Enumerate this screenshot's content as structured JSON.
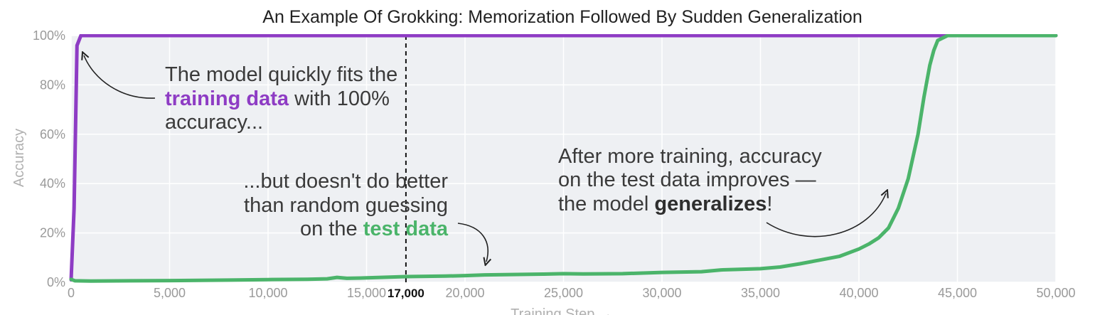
{
  "chart_data": {
    "type": "line",
    "title": "An Example Of Grokking: Memorization Followed By Sudden Generalization",
    "xlabel": "Training Step →",
    "ylabel": "Accuracy",
    "xlim": [
      0,
      50000
    ],
    "ylim": [
      0,
      100
    ],
    "x_ticks": [
      0,
      5000,
      10000,
      15000,
      20000,
      25000,
      30000,
      35000,
      40000,
      45000,
      50000
    ],
    "x_tick_labels": [
      "0",
      "5,000",
      "10,000",
      "15,000",
      "20,000",
      "25,000",
      "30,000",
      "35,000",
      "40,000",
      "45,000",
      "50,000"
    ],
    "y_ticks": [
      0,
      20,
      40,
      60,
      80,
      100
    ],
    "y_tick_labels": [
      "0%",
      "20%",
      "40%",
      "60%",
      "80%",
      "100%"
    ],
    "grid": true,
    "colors": {
      "train": "#8e3cc4",
      "test": "#4bb46a",
      "background": "#eef0f3",
      "grid": "#ffffff"
    },
    "series": [
      {
        "key": "train",
        "color": "#8e3cc4",
        "points": [
          [
            0,
            1
          ],
          [
            150,
            30
          ],
          [
            300,
            96
          ],
          [
            500,
            100
          ],
          [
            50000,
            100
          ]
        ]
      },
      {
        "key": "test",
        "color": "#4bb46a",
        "points": [
          [
            0,
            1.2
          ],
          [
            200,
            0.6
          ],
          [
            1000,
            0.5
          ],
          [
            3000,
            0.6
          ],
          [
            5000,
            0.7
          ],
          [
            8000,
            0.9
          ],
          [
            10000,
            1.1
          ],
          [
            12000,
            1.2
          ],
          [
            13000,
            1.4
          ],
          [
            13500,
            2.0
          ],
          [
            14000,
            1.6
          ],
          [
            15000,
            1.8
          ],
          [
            17000,
            2.3
          ],
          [
            19000,
            2.5
          ],
          [
            20000,
            2.7
          ],
          [
            21000,
            3.0
          ],
          [
            22000,
            3.1
          ],
          [
            24000,
            3.3
          ],
          [
            25000,
            3.5
          ],
          [
            26000,
            3.4
          ],
          [
            28000,
            3.5
          ],
          [
            30000,
            4.0
          ],
          [
            32000,
            4.3
          ],
          [
            33000,
            5.0
          ],
          [
            35000,
            5.5
          ],
          [
            36000,
            6.2
          ],
          [
            37000,
            7.5
          ],
          [
            38000,
            9.0
          ],
          [
            39000,
            10.5
          ],
          [
            40000,
            13.5
          ],
          [
            40500,
            15.5
          ],
          [
            41000,
            18
          ],
          [
            41500,
            22
          ],
          [
            42000,
            30
          ],
          [
            42500,
            42
          ],
          [
            43000,
            60
          ],
          [
            43300,
            75
          ],
          [
            43600,
            88
          ],
          [
            43800,
            94
          ],
          [
            44000,
            98
          ],
          [
            44500,
            100
          ],
          [
            50000,
            100
          ]
        ]
      }
    ],
    "marker": {
      "x": 17000,
      "label": "17,000"
    },
    "annotations": {
      "train_note": {
        "line1": "The model quickly fits the",
        "highlight": "training data",
        "line2_rest": " with 100%",
        "line3": "accuracy..."
      },
      "test_note": {
        "line1": "...but doesn't do better",
        "line2": "than random guessing",
        "line3_pre": "on the ",
        "highlight": "test data"
      },
      "general_note": {
        "line1": "After more training, accuracy",
        "line2": "on the test data improves —",
        "line3_pre": "the model ",
        "highlight": "generalizes",
        "line3_post": "!"
      }
    }
  }
}
